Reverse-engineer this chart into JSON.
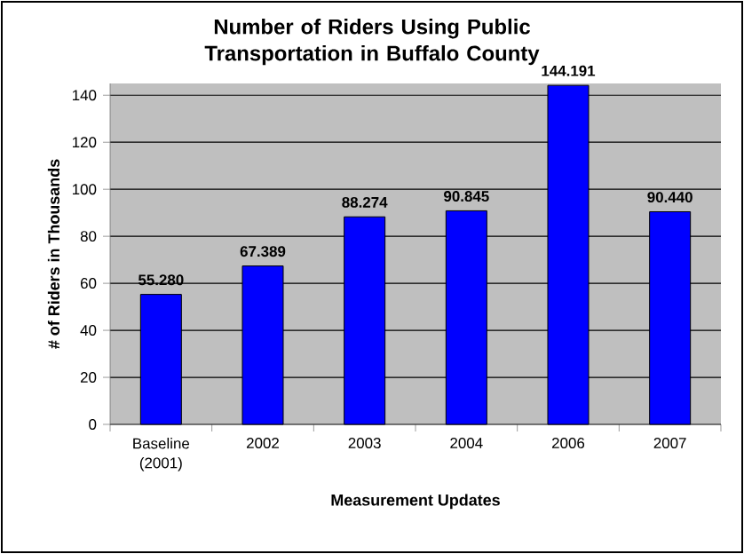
{
  "chart_data": {
    "type": "bar",
    "title": "Number of Riders Using Public Transportation in Buffalo County",
    "xlabel": "Measurement Updates",
    "ylabel": "# of Riders in Thousands",
    "categories": [
      "Baseline (2001)",
      "2002",
      "2003",
      "2004",
      "2006",
      "2007"
    ],
    "values": [
      55.28,
      67.389,
      88.274,
      90.845,
      144.191,
      90.44
    ],
    "value_labels": [
      "55.280",
      "67.389",
      "88.274",
      "90.845",
      "144.191",
      "90.440"
    ],
    "color": "#0000ff",
    "ylim": [
      0,
      145
    ],
    "yticks": [
      0,
      20,
      40,
      60,
      80,
      100,
      120,
      140
    ],
    "grid": "y"
  }
}
